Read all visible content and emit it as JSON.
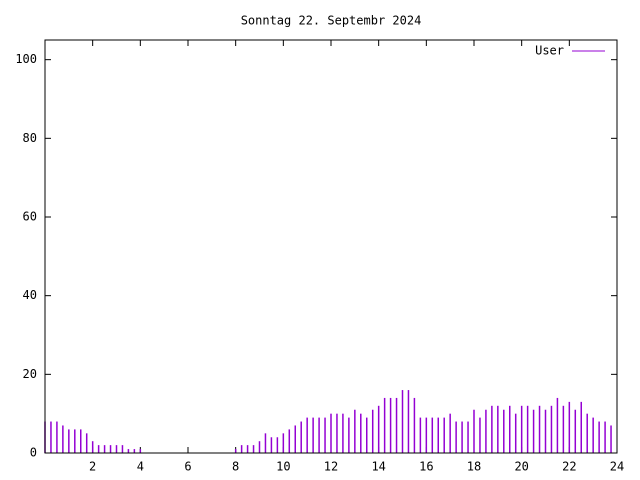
{
  "chart_data": {
    "type": "impulses",
    "title": "Sonntag 22. Septembr 2024",
    "x": [
      0,
      0.25,
      0.5,
      0.75,
      1,
      1.25,
      1.5,
      1.75,
      2,
      2.25,
      2.5,
      2.75,
      3,
      3.25,
      3.5,
      3.75,
      4,
      4.25,
      4.5,
      4.75,
      5,
      5.25,
      5.5,
      5.75,
      6,
      6.25,
      6.5,
      6.75,
      7,
      7.25,
      7.5,
      7.75,
      8,
      8.25,
      8.5,
      8.75,
      9,
      9.25,
      9.5,
      9.75,
      10,
      10.25,
      10.5,
      10.75,
      11,
      11.25,
      11.5,
      11.75,
      12,
      12.25,
      12.5,
      12.75,
      13,
      13.25,
      13.5,
      13.75,
      14,
      14.25,
      14.5,
      14.75,
      15,
      15.25,
      15.5,
      15.75,
      16,
      16.25,
      16.5,
      16.75,
      17,
      17.25,
      17.5,
      17.75,
      18,
      18.25,
      18.5,
      18.75,
      19,
      19.25,
      19.5,
      19.75,
      20,
      20.25,
      20.5,
      20.75,
      21,
      21.25,
      21.5,
      21.75,
      22,
      22.25,
      22.5,
      22.75,
      23,
      23.25,
      23.5,
      23.75
    ],
    "series": [
      {
        "name": "User",
        "color": "#9400d3",
        "values": [
          8,
          8,
          8,
          7,
          6,
          6,
          6,
          5,
          3,
          2,
          2,
          2,
          2,
          2,
          1,
          1,
          1,
          0,
          0,
          0,
          0,
          0,
          0,
          0,
          0,
          0,
          0,
          0,
          0,
          0,
          0,
          0,
          1,
          2,
          2,
          2,
          3,
          5,
          4,
          4,
          5,
          6,
          7,
          8,
          9,
          9,
          9,
          9,
          10,
          10,
          10,
          9,
          11,
          10,
          9,
          11,
          12,
          14,
          14,
          14,
          16,
          16,
          14,
          9,
          9,
          9,
          9,
          9,
          10,
          8,
          8,
          8,
          11,
          9,
          11,
          12,
          12,
          11,
          12,
          10,
          12,
          12,
          11,
          12,
          11,
          12,
          14,
          12,
          13,
          11,
          13,
          10,
          9,
          8,
          8,
          7
        ]
      }
    ],
    "xlim": [
      0,
      24
    ],
    "xticks": [
      2,
      4,
      6,
      8,
      10,
      12,
      14,
      16,
      18,
      20,
      22,
      24
    ],
    "ylim": [
      0,
      105
    ],
    "yticks": [
      0,
      20,
      40,
      60,
      80,
      100
    ],
    "legend": "top-right"
  }
}
